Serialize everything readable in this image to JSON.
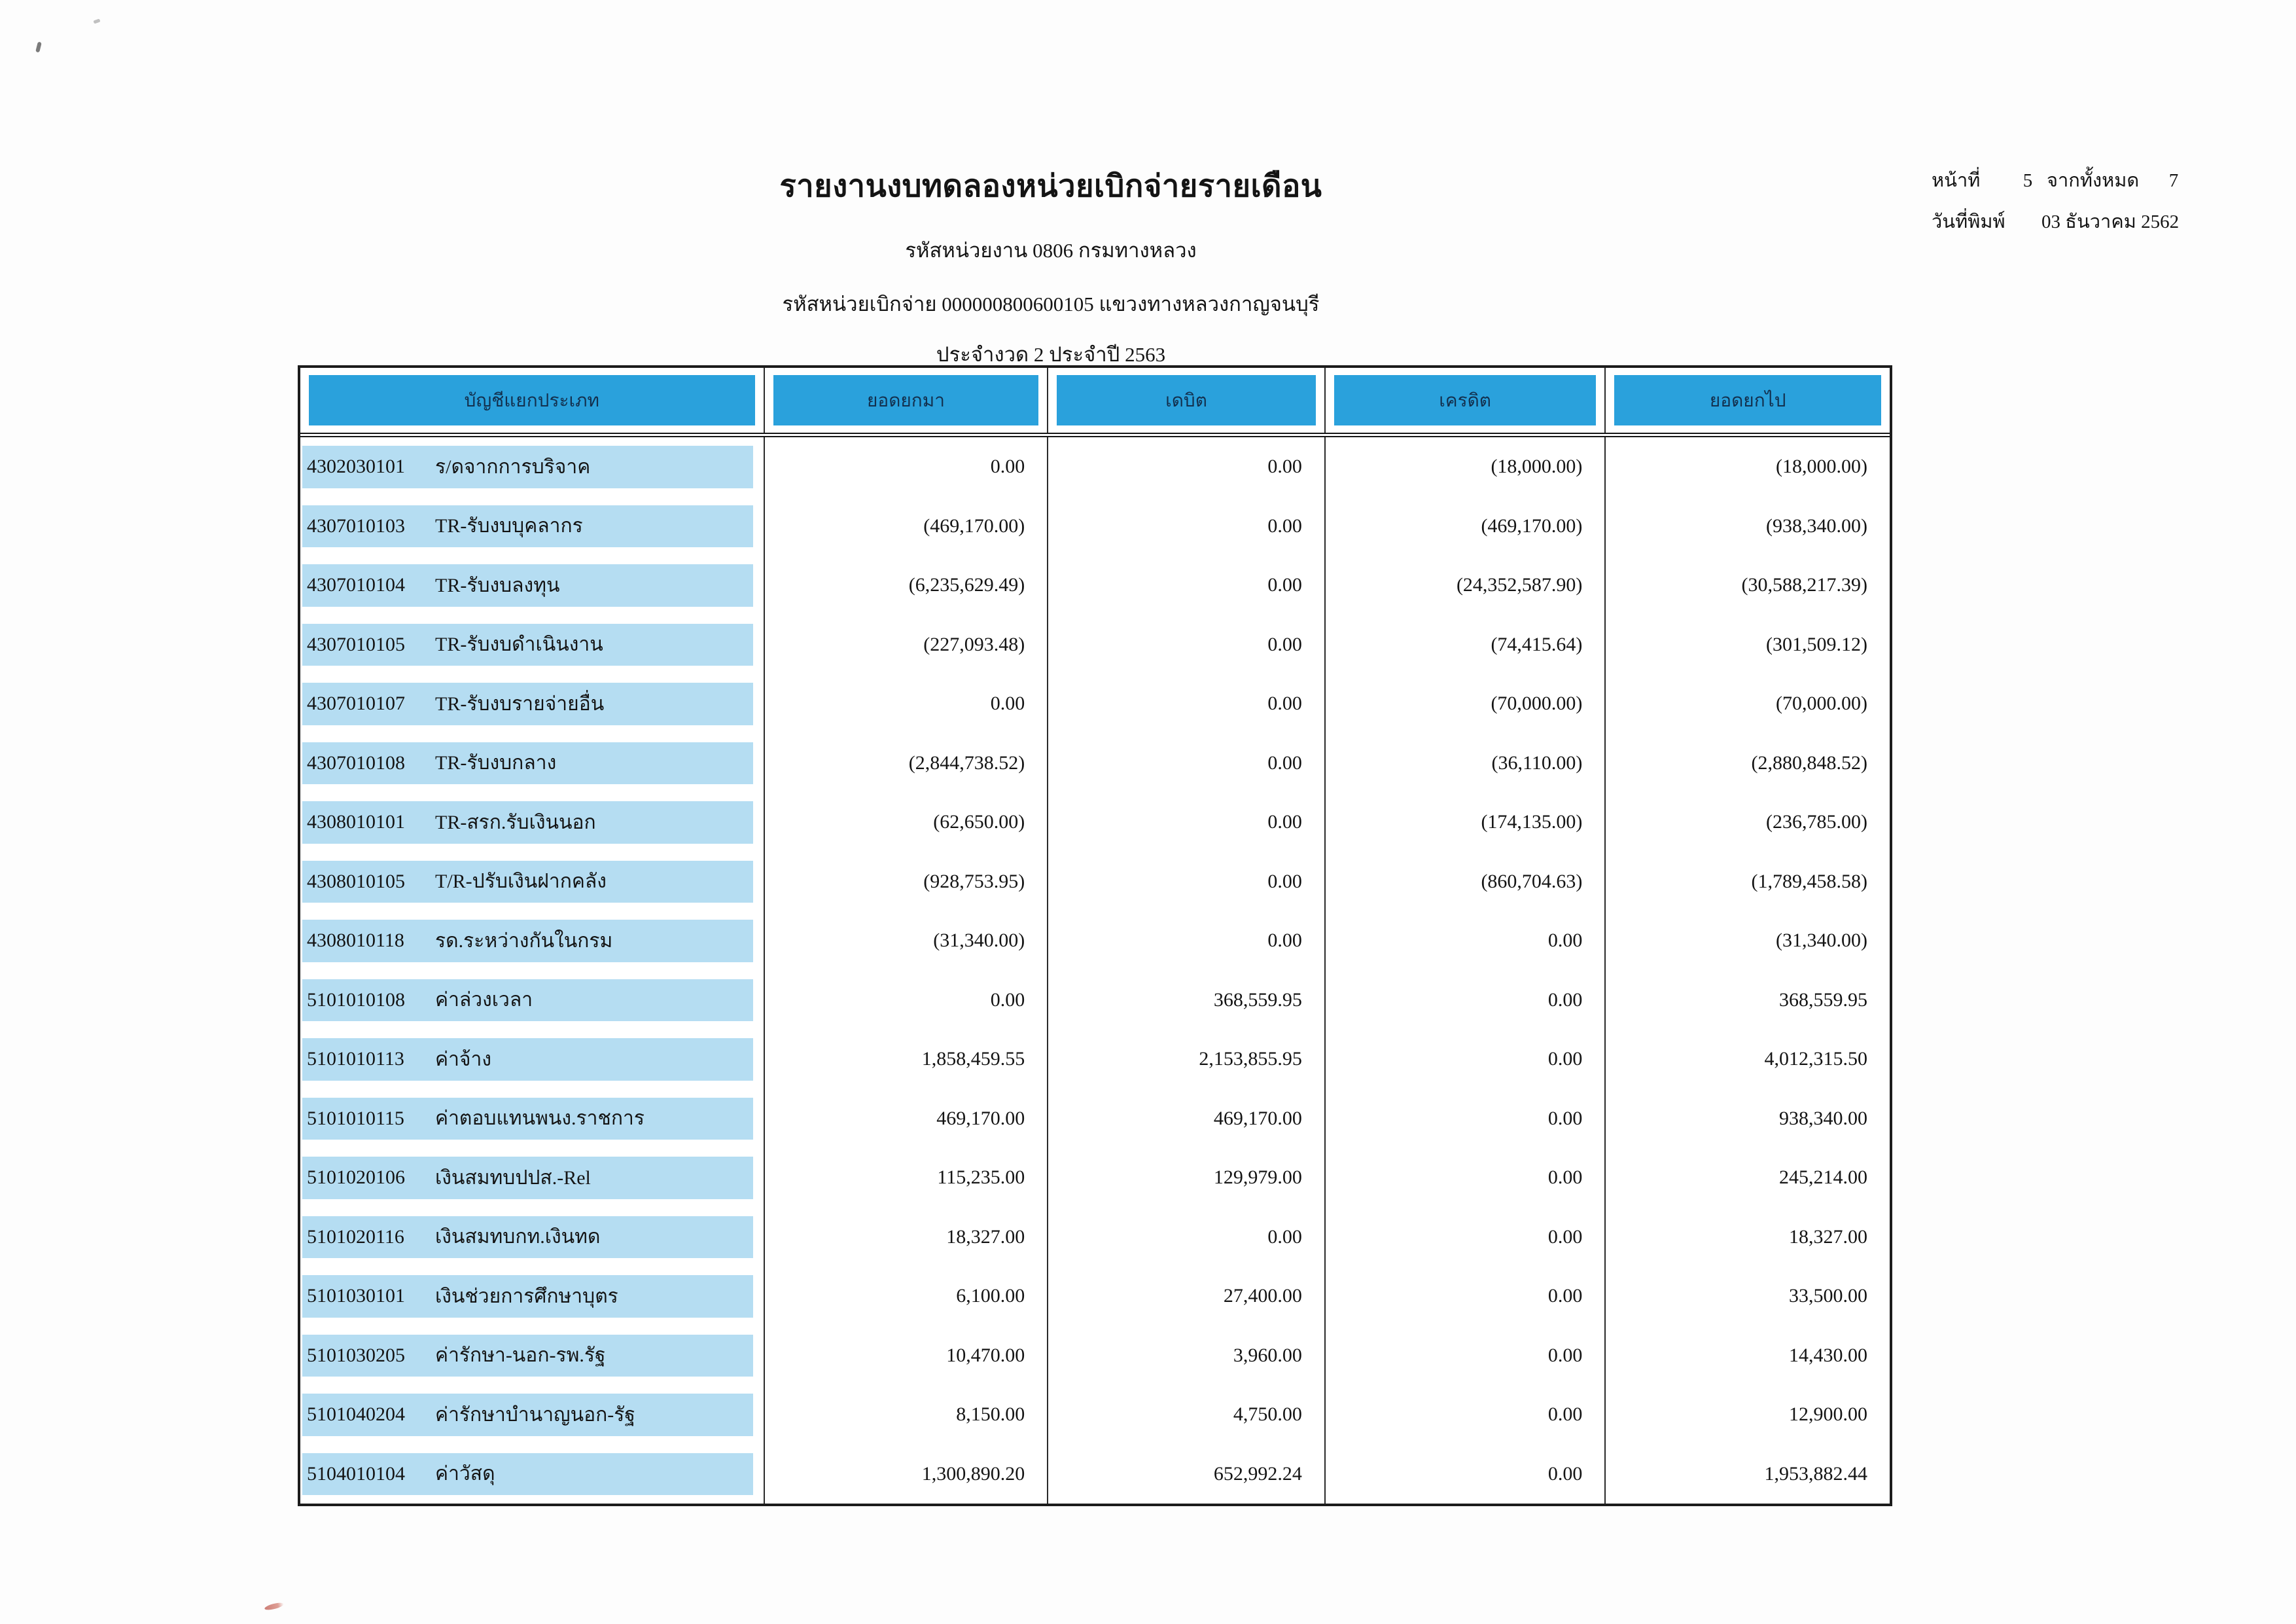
{
  "page": {
    "title": "รายงานงบทดลองหน่วยเบิกจ่ายรายเดือน",
    "org_line": "รหัสหน่วยงาน 0806 กรมทางหลวง",
    "unit_line": "รหัสหน่วยเบิกจ่าย 000000800600105 แขวงทางหลวงกาญจนบุรี",
    "period_line": "ประจำงวด 2 ประจำปี 2563",
    "page_label": "หน้าที่",
    "page_number": "5",
    "of_label": "จากทั้งหมด",
    "total_pages": "7",
    "print_date_label": "วันที่พิมพ์",
    "print_date": "03 ธันวาคม 2562"
  },
  "colors": {
    "header_blue": "#2aa1dc",
    "band_blue": "#b5ddf2"
  },
  "table": {
    "columns": [
      "บัญชีแยกประเภท",
      "ยอดยกมา",
      "เดบิต",
      "เครดิต",
      "ยอดยกไป"
    ],
    "rows": [
      {
        "code": "4302030101",
        "name": "ร/ดจากการบริจาค",
        "brought_forward": "0.00",
        "debit": "0.00",
        "credit": "(18,000.00)",
        "carried_forward": "(18,000.00)"
      },
      {
        "code": "4307010103",
        "name": "TR-รับงบบุคลากร",
        "brought_forward": "(469,170.00)",
        "debit": "0.00",
        "credit": "(469,170.00)",
        "carried_forward": "(938,340.00)"
      },
      {
        "code": "4307010104",
        "name": "TR-รับงบลงทุน",
        "brought_forward": "(6,235,629.49)",
        "debit": "0.00",
        "credit": "(24,352,587.90)",
        "carried_forward": "(30,588,217.39)"
      },
      {
        "code": "4307010105",
        "name": "TR-รับงบดำเนินงาน",
        "brought_forward": "(227,093.48)",
        "debit": "0.00",
        "credit": "(74,415.64)",
        "carried_forward": "(301,509.12)"
      },
      {
        "code": "4307010107",
        "name": "TR-รับงบรายจ่ายอื่น",
        "brought_forward": "0.00",
        "debit": "0.00",
        "credit": "(70,000.00)",
        "carried_forward": "(70,000.00)"
      },
      {
        "code": "4307010108",
        "name": "TR-รับงบกลาง",
        "brought_forward": "(2,844,738.52)",
        "debit": "0.00",
        "credit": "(36,110.00)",
        "carried_forward": "(2,880,848.52)"
      },
      {
        "code": "4308010101",
        "name": "TR-สรก.รับเงินนอก",
        "brought_forward": "(62,650.00)",
        "debit": "0.00",
        "credit": "(174,135.00)",
        "carried_forward": "(236,785.00)"
      },
      {
        "code": "4308010105",
        "name": "T/R-ปรับเงินฝากคลัง",
        "brought_forward": "(928,753.95)",
        "debit": "0.00",
        "credit": "(860,704.63)",
        "carried_forward": "(1,789,458.58)"
      },
      {
        "code": "4308010118",
        "name": "รด.ระหว่างกันในกรม",
        "brought_forward": "(31,340.00)",
        "debit": "0.00",
        "credit": "0.00",
        "carried_forward": "(31,340.00)"
      },
      {
        "code": "5101010108",
        "name": "ค่าล่วงเวลา",
        "brought_forward": "0.00",
        "debit": "368,559.95",
        "credit": "0.00",
        "carried_forward": "368,559.95"
      },
      {
        "code": "5101010113",
        "name": "ค่าจ้าง",
        "brought_forward": "1,858,459.55",
        "debit": "2,153,855.95",
        "credit": "0.00",
        "carried_forward": "4,012,315.50"
      },
      {
        "code": "5101010115",
        "name": "ค่าตอบแทนพนง.ราชการ",
        "brought_forward": "469,170.00",
        "debit": "469,170.00",
        "credit": "0.00",
        "carried_forward": "938,340.00"
      },
      {
        "code": "5101020106",
        "name": "เงินสมทบปปส.-Rel",
        "brought_forward": "115,235.00",
        "debit": "129,979.00",
        "credit": "0.00",
        "carried_forward": "245,214.00"
      },
      {
        "code": "5101020116",
        "name": "เงินสมทบกท.เงินทด",
        "brought_forward": "18,327.00",
        "debit": "0.00",
        "credit": "0.00",
        "carried_forward": "18,327.00"
      },
      {
        "code": "5101030101",
        "name": "เงินช่วยการศึกษาบุตร",
        "brought_forward": "6,100.00",
        "debit": "27,400.00",
        "credit": "0.00",
        "carried_forward": "33,500.00"
      },
      {
        "code": "5101030205",
        "name": "ค่ารักษา-นอก-รพ.รัฐ",
        "brought_forward": "10,470.00",
        "debit": "3,960.00",
        "credit": "0.00",
        "carried_forward": "14,430.00"
      },
      {
        "code": "5101040204",
        "name": "ค่ารักษาบำนาญนอก-รัฐ",
        "brought_forward": "8,150.00",
        "debit": "4,750.00",
        "credit": "0.00",
        "carried_forward": "12,900.00"
      },
      {
        "code": "5104010104",
        "name": "ค่าวัสดุ",
        "brought_forward": "1,300,890.20",
        "debit": "652,992.24",
        "credit": "0.00",
        "carried_forward": "1,953,882.44"
      }
    ]
  }
}
